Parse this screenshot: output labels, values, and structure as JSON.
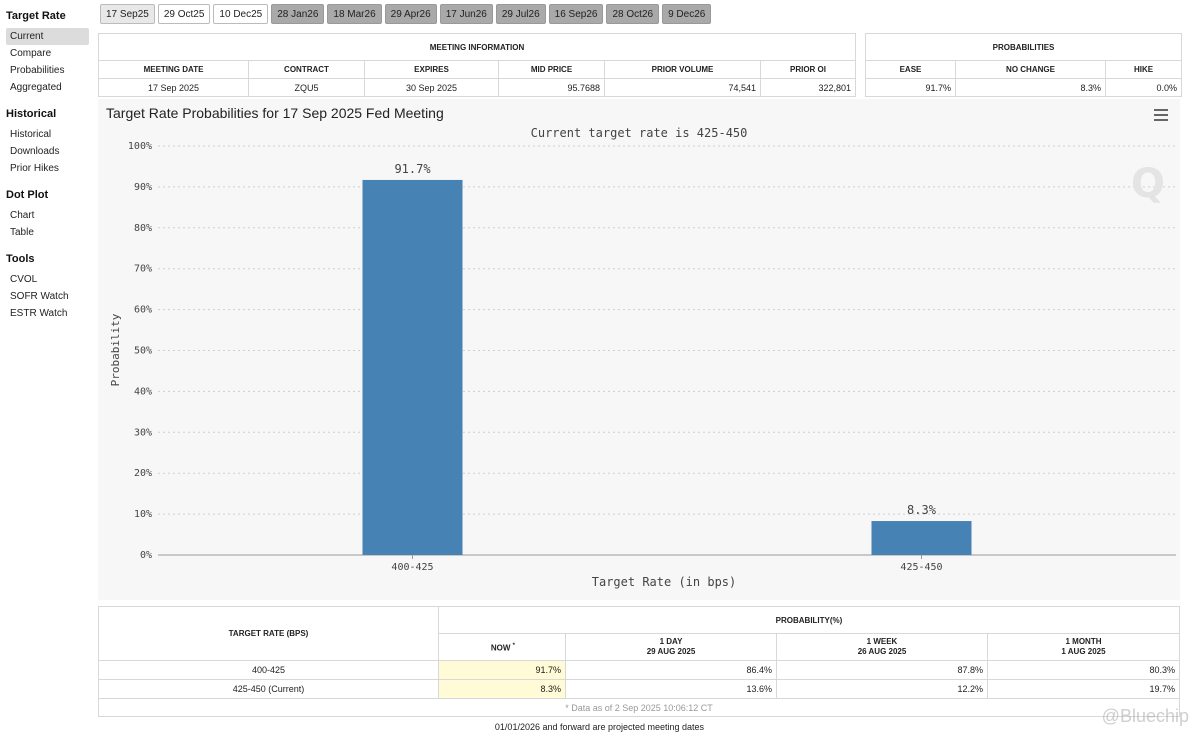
{
  "sidebar": {
    "sections": [
      {
        "heading": "Target Rate",
        "items": [
          "Current",
          "Compare",
          "Probabilities",
          "Aggregated"
        ]
      },
      {
        "heading": "Historical",
        "items": [
          "Historical",
          "Downloads",
          "Prior Hikes"
        ]
      },
      {
        "heading": "Dot Plot",
        "items": [
          "Chart",
          "Table"
        ]
      },
      {
        "heading": "Tools",
        "items": [
          "CVOL",
          "SOFR Watch",
          "ESTR Watch"
        ]
      }
    ],
    "active_item": "Current"
  },
  "tabs": [
    {
      "label": "17 Sep25",
      "state": "selected"
    },
    {
      "label": "29 Oct25",
      "state": "normal"
    },
    {
      "label": "10 Dec25",
      "state": "normal"
    },
    {
      "label": "28 Jan26",
      "state": "projected"
    },
    {
      "label": "18 Mar26",
      "state": "projected"
    },
    {
      "label": "29 Apr26",
      "state": "projected"
    },
    {
      "label": "17 Jun26",
      "state": "projected"
    },
    {
      "label": "29 Jul26",
      "state": "projected"
    },
    {
      "label": "16 Sep26",
      "state": "projected"
    },
    {
      "label": "28 Oct26",
      "state": "projected"
    },
    {
      "label": "9 Dec26",
      "state": "projected"
    }
  ],
  "meeting_info": {
    "caption": "MEETING INFORMATION",
    "headers": [
      "MEETING DATE",
      "CONTRACT",
      "EXPIRES",
      "MID PRICE",
      "PRIOR VOLUME",
      "PRIOR OI"
    ],
    "row": [
      "17 Sep 2025",
      "ZQU5",
      "30 Sep 2025",
      "95.7688",
      "74,541",
      "322,801"
    ]
  },
  "probabilities": {
    "caption": "PROBABILITIES",
    "headers": [
      "EASE",
      "NO CHANGE",
      "HIKE"
    ],
    "row": [
      "91.7%",
      "8.3%",
      "0.0%"
    ]
  },
  "chart": {
    "title": "Target Rate Probabilities for 17 Sep 2025 Fed Meeting",
    "watermark_letter": "Q"
  },
  "chart_data": {
    "type": "bar",
    "title": "Target Rate Probabilities for 17 Sep 2025 Fed Meeting",
    "subtitle": "Current target rate is 425-450",
    "categories": [
      "400-425",
      "425-450"
    ],
    "values": [
      91.7,
      8.3
    ],
    "data_labels": [
      "91.7%",
      "8.3%"
    ],
    "xlabel": "Target Rate (in bps)",
    "ylabel": "Probability",
    "ylim": [
      0,
      100
    ],
    "yticks": [
      "0%",
      "10%",
      "20%",
      "30%",
      "40%",
      "50%",
      "60%",
      "70%",
      "80%",
      "90%",
      "100%"
    ],
    "grid": true,
    "bar_color": "#4682b4"
  },
  "history": {
    "col1_header": "TARGET RATE (BPS)",
    "group_header": "PROBABILITY(%)",
    "now_label": "NOW",
    "now_mark": "*",
    "periods": [
      {
        "label": "1 DAY",
        "date": "29 AUG 2025"
      },
      {
        "label": "1 WEEK",
        "date": "26 AUG 2025"
      },
      {
        "label": "1 MONTH",
        "date": "1 AUG 2025"
      }
    ],
    "rows": [
      {
        "rate": "400-425",
        "now": "91.7%",
        "values": [
          "86.4%",
          "87.8%",
          "80.3%"
        ]
      },
      {
        "rate": "425-450 (Current)",
        "now": "8.3%",
        "values": [
          "13.6%",
          "12.2%",
          "19.7%"
        ]
      }
    ],
    "note": "* Data as of 2 Sep 2025 10:06:12 CT"
  },
  "footer": "01/01/2026 and forward are projected meeting dates",
  "watermark": "@Bluechip"
}
